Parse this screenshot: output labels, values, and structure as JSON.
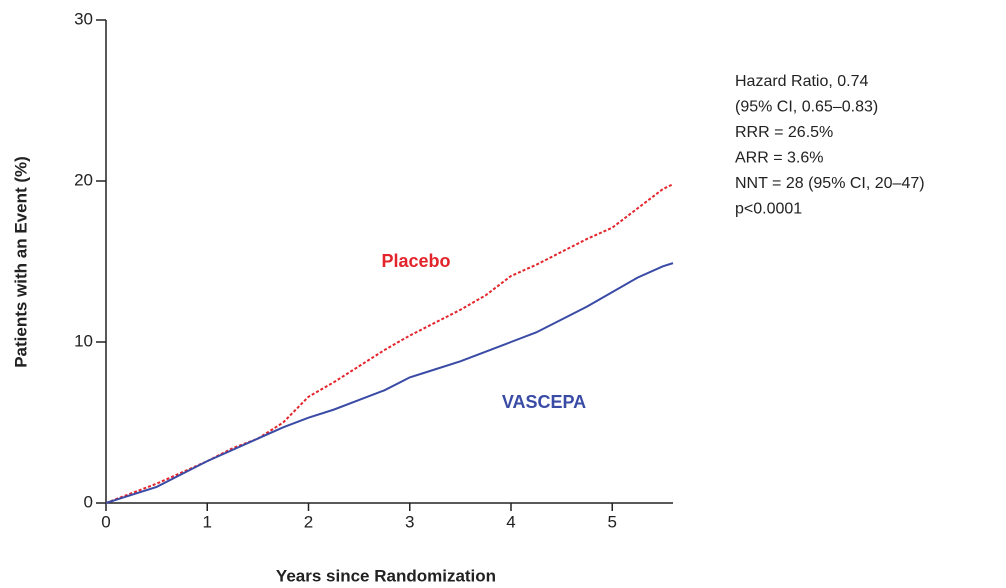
{
  "chart_data": {
    "type": "line",
    "xlabel": "Years since Randomization",
    "ylabel": "Patients with an Event (%)",
    "x": [
      0,
      0.25,
      0.5,
      0.75,
      1,
      1.25,
      1.5,
      1.75,
      2,
      2.25,
      2.5,
      2.75,
      3,
      3.25,
      3.5,
      3.75,
      4,
      4.25,
      4.5,
      4.75,
      5,
      5.25,
      5.5,
      5.6
    ],
    "series": [
      {
        "name": "Placebo",
        "color": "#e3242b",
        "dash": true,
        "values": [
          0,
          0.6,
          1.2,
          1.9,
          2.6,
          3.4,
          4.0,
          5.0,
          6.6,
          7.5,
          8.5,
          9.5,
          10.4,
          11.2,
          12.0,
          12.9,
          14.1,
          14.8,
          15.6,
          16.4,
          17.1,
          18.3,
          19.5,
          19.8
        ]
      },
      {
        "name": "VASCEPA",
        "color": "#3a4ba6",
        "dash": false,
        "values": [
          0,
          0.5,
          1.0,
          1.8,
          2.6,
          3.3,
          4.0,
          4.7,
          5.3,
          5.8,
          6.4,
          7.0,
          7.8,
          8.3,
          8.8,
          9.4,
          10.0,
          10.6,
          11.4,
          12.2,
          13.1,
          14.0,
          14.7,
          14.9
        ]
      }
    ],
    "xlim": [
      0,
      5.6
    ],
    "xticks": [
      0,
      1,
      2,
      3,
      4,
      5
    ],
    "ylim": [
      0,
      30
    ],
    "yticks": [
      0,
      10,
      20,
      30
    ],
    "annotations": [
      "Hazard Ratio, 0.74",
      "(95% CI, 0.65–0.83)",
      "RRR = 26.5%",
      "ARR = 3.6%",
      "NNT = 28 (95% CI, 20–47)",
      "p<0.0001"
    ]
  }
}
